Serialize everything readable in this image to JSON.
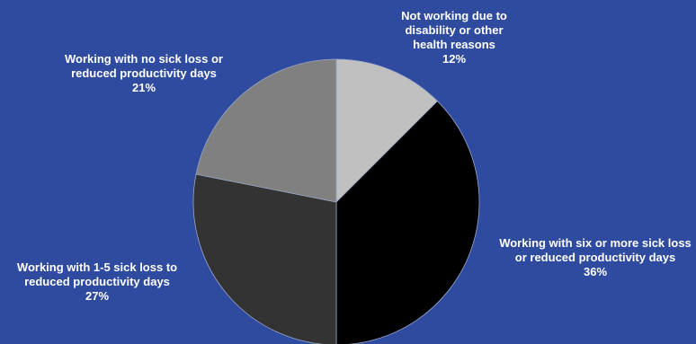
{
  "chart_data": {
    "type": "pie",
    "categories": [
      "Not working due to disability or other health reasons",
      "Working with six or more sick loss or reduced productivity days",
      "Working with 1-5 sick loss to reduced productivity days",
      "Working with no sick loss or reduced productivity days"
    ],
    "values": [
      12,
      36,
      27,
      21
    ],
    "value_labels": [
      "12%",
      "36%",
      "27%",
      "21%"
    ],
    "colors": [
      "#c0c0c0",
      "#000000",
      "#333333",
      "#808080"
    ],
    "background": "#2f4b9f"
  }
}
